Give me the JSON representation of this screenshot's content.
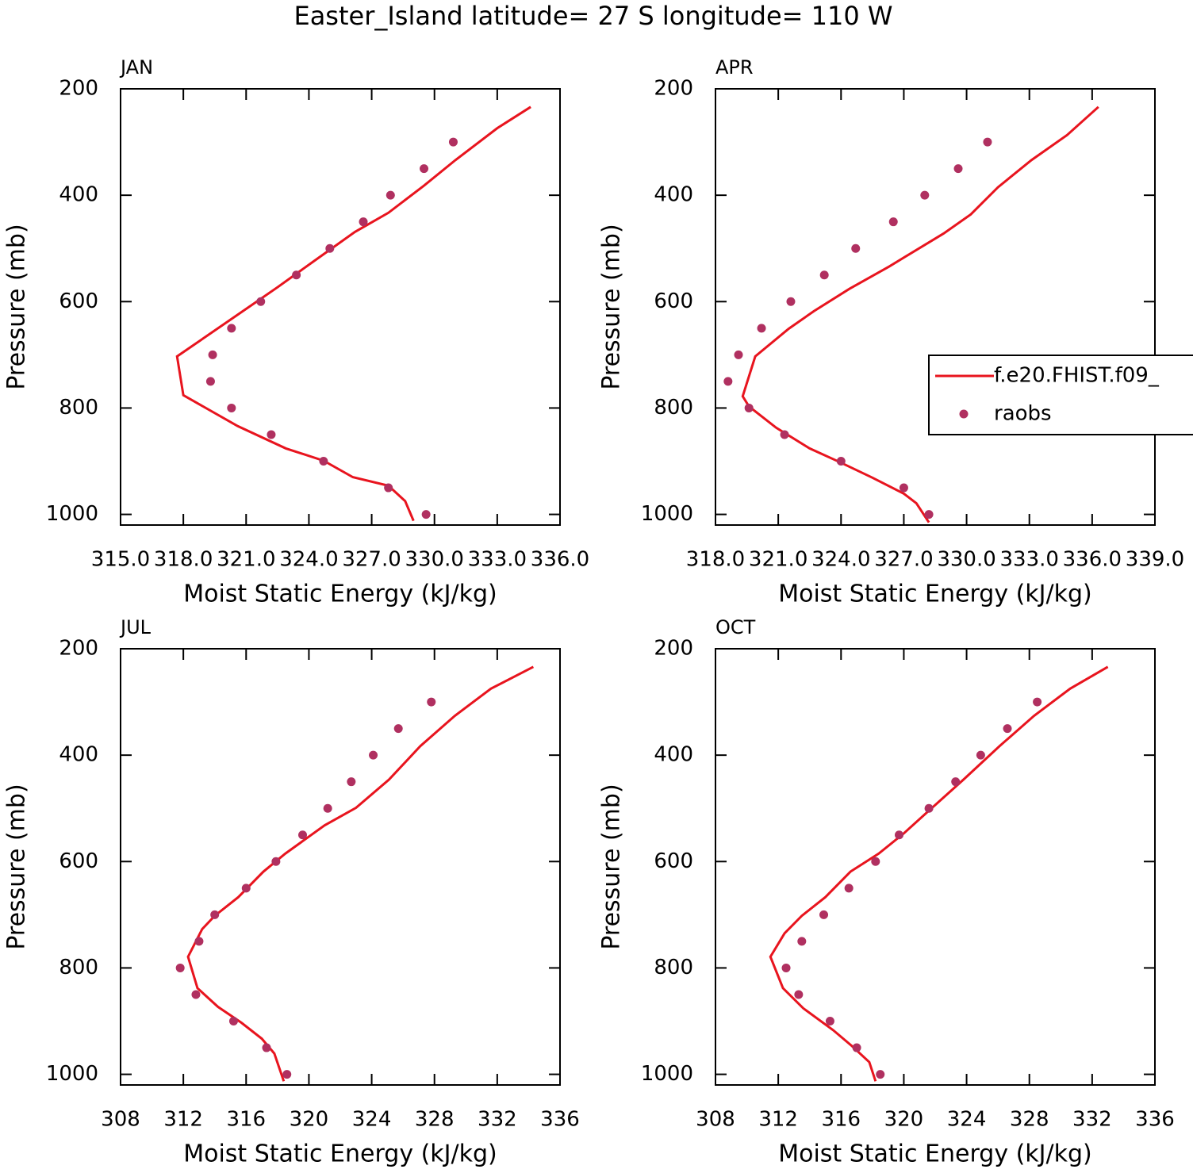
{
  "title": "Easter_Island  latitude= 27 S longitude= 110 W",
  "chart_data": [
    {
      "type": "line",
      "title": "JAN",
      "xlabel": "Moist Static Energy (kJ/kg)",
      "ylabel": "Pressure (mb)",
      "xlim": [
        315,
        336
      ],
      "xticks": [
        {
          "value": 315,
          "label": "315.0"
        },
        {
          "value": 318,
          "label": "318.0"
        },
        {
          "value": 321,
          "label": "321.0"
        },
        {
          "value": 324,
          "label": "324.0"
        },
        {
          "value": 327,
          "label": "327.0"
        },
        {
          "value": 330,
          "label": "330.0"
        },
        {
          "value": 333,
          "label": "333.0"
        },
        {
          "value": 336,
          "label": "336.0"
        }
      ],
      "ylim": [
        1020,
        200
      ],
      "yticks": [
        200,
        400,
        600,
        800,
        1000
      ],
      "series": [
        {
          "style": "line",
          "color": "#e8141e",
          "x": [
            334.6,
            333.0,
            331.0,
            329.5,
            327.8,
            326.2,
            324.2,
            322.5,
            320.4,
            317.7,
            318.0,
            320.6,
            322.9,
            324.7,
            326.1,
            327.8,
            328.6,
            329.0
          ],
          "y": [
            234,
            274,
            334,
            382,
            433,
            469,
            525,
            573,
            630,
            703,
            776,
            834,
            876,
            899,
            930,
            946,
            975,
            1012
          ]
        },
        {
          "style": "markers",
          "color": "#b03060",
          "x": [
            330.9,
            329.5,
            327.9,
            326.6,
            325.0,
            323.4,
            321.7,
            320.3,
            319.4,
            319.3,
            320.3,
            322.2,
            324.7,
            327.8,
            329.6
          ],
          "y": [
            300,
            350,
            400,
            450,
            500,
            550,
            600,
            650,
            700,
            750,
            800,
            850,
            900,
            950,
            1000
          ]
        }
      ]
    },
    {
      "type": "line",
      "title": "APR",
      "xlabel": "Moist Static Energy (kJ/kg)",
      "ylabel": "Pressure (mb)",
      "xlim": [
        318,
        339
      ],
      "xticks": [
        {
          "value": 318,
          "label": "318.0"
        },
        {
          "value": 321,
          "label": "321.0"
        },
        {
          "value": 324,
          "label": "324.0"
        },
        {
          "value": 327,
          "label": "327.0"
        },
        {
          "value": 330,
          "label": "330.0"
        },
        {
          "value": 333,
          "label": "333.0"
        },
        {
          "value": 336,
          "label": "336.0"
        },
        {
          "value": 339,
          "label": "339.0"
        }
      ],
      "ylim": [
        1020,
        200
      ],
      "yticks": [
        200,
        400,
        600,
        800,
        1000
      ],
      "legend": "right",
      "series": [
        {
          "name": "f.e20.FHIST.f09_",
          "style": "line",
          "color": "#e8141e",
          "x": [
            336.3,
            334.8,
            333.1,
            331.5,
            330.2,
            328.9,
            326.3,
            324.4,
            322.7,
            321.5,
            319.9,
            319.3,
            319.6,
            320.9,
            322.5,
            323.9,
            325.5,
            327.0,
            327.6,
            328.2
          ],
          "y": [
            234,
            287,
            334,
            385,
            436,
            472,
            534,
            576,
            618,
            651,
            703,
            778,
            797,
            837,
            876,
            901,
            931,
            961,
            979,
            1015
          ]
        },
        {
          "name": "raobs",
          "style": "markers",
          "color": "#b03060",
          "x": [
            331.0,
            329.6,
            328.0,
            326.5,
            324.7,
            323.2,
            321.6,
            320.2,
            319.1,
            318.6,
            319.6,
            321.3,
            324.0,
            327.0,
            328.2
          ],
          "y": [
            300,
            350,
            400,
            450,
            500,
            550,
            600,
            650,
            700,
            750,
            800,
            850,
            900,
            950,
            1000
          ]
        }
      ]
    },
    {
      "type": "line",
      "title": "JUL",
      "xlabel": "Moist Static Energy (kJ/kg)",
      "ylabel": "Pressure (mb)",
      "xlim": [
        308,
        336
      ],
      "xticks": [
        308,
        312,
        316,
        320,
        324,
        328,
        332,
        336
      ],
      "ylim": [
        1020,
        200
      ],
      "yticks": [
        200,
        400,
        600,
        800,
        1000
      ],
      "series": [
        {
          "style": "line",
          "color": "#e8141e",
          "x": [
            334.3,
            331.6,
            329.3,
            327.1,
            325.1,
            323.0,
            321.0,
            318.5,
            317.1,
            315.5,
            314.0,
            313.2,
            312.3,
            312.9,
            314.2,
            315.7,
            317.0,
            317.8,
            318.4
          ],
          "y": [
            234,
            275,
            326,
            383,
            446,
            499,
            532,
            585,
            619,
            667,
            702,
            727,
            779,
            838,
            873,
            903,
            933,
            961,
            1013
          ]
        },
        {
          "style": "markers",
          "color": "#b03060",
          "x": [
            327.8,
            325.7,
            324.1,
            322.7,
            321.2,
            319.6,
            317.9,
            316.0,
            314.0,
            313.0,
            311.8,
            312.8,
            315.2,
            317.3,
            318.6
          ],
          "y": [
            300,
            350,
            400,
            450,
            500,
            550,
            600,
            650,
            700,
            750,
            800,
            850,
            900,
            950,
            1000
          ]
        }
      ]
    },
    {
      "type": "line",
      "title": "OCT",
      "xlabel": "Moist Static Energy (kJ/kg)",
      "ylabel": "Pressure (mb)",
      "xlim": [
        308,
        336
      ],
      "xticks": [
        308,
        312,
        316,
        320,
        324,
        328,
        332,
        336
      ],
      "ylim": [
        1020,
        200
      ],
      "yticks": [
        200,
        400,
        600,
        800,
        1000
      ],
      "series": [
        {
          "style": "line",
          "color": "#e8141e",
          "x": [
            333.0,
            330.6,
            328.3,
            326.1,
            323.8,
            321.8,
            320.0,
            318.4,
            316.6,
            315.0,
            313.5,
            312.4,
            311.5,
            312.3,
            313.6,
            315.5,
            316.7,
            317.8,
            318.2
          ],
          "y": [
            234,
            275,
            326,
            383,
            446,
            499,
            547,
            585,
            619,
            667,
            702,
            735,
            779,
            838,
            876,
            917,
            947,
            977,
            1013
          ]
        },
        {
          "style": "markers",
          "color": "#b03060",
          "x": [
            328.5,
            326.6,
            324.9,
            323.3,
            321.6,
            319.7,
            318.2,
            316.5,
            314.9,
            313.5,
            312.5,
            313.3,
            315.3,
            317.0,
            318.5
          ],
          "y": [
            300,
            350,
            400,
            450,
            500,
            550,
            600,
            650,
            700,
            750,
            800,
            850,
            900,
            950,
            1000
          ]
        }
      ]
    }
  ]
}
